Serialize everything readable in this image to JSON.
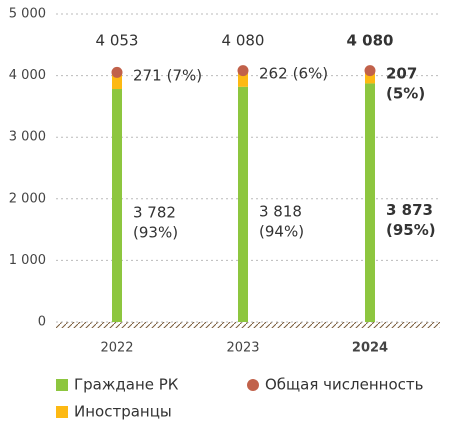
{
  "chart_data": {
    "type": "stacked-bar",
    "categories": [
      "2022",
      "2023",
      "2024"
    ],
    "highlight": "2024",
    "series": [
      {
        "name": "Граждане РК",
        "color": "#8dc63f",
        "values": [
          3782,
          3818,
          3873
        ],
        "value_labels": [
          "3 782",
          "3 818",
          "3 873"
        ],
        "share_labels": [
          "(93%)",
          "(94%)",
          "(95%)"
        ]
      },
      {
        "name": "Иностранцы",
        "color": "#fdb913",
        "values": [
          271,
          262,
          207
        ],
        "value_labels": [
          "271",
          "262",
          "207"
        ],
        "share_labels": [
          "(7%)",
          "(6%)",
          "(5%)"
        ]
      }
    ],
    "total": {
      "name": "Общая численность",
      "color": "#c1614a",
      "values": [
        4053,
        4080,
        4080
      ],
      "value_labels": [
        "4 053",
        "4 080",
        "4 080"
      ]
    },
    "ylim": [
      0,
      5000
    ],
    "yticks": [
      0,
      {
        "value": 1000,
        "label": "1 000"
      },
      {
        "value": 2000,
        "label": "2 000"
      },
      {
        "value": 3000,
        "label": "3 000"
      },
      {
        "value": 4000,
        "label": "4 000"
      },
      {
        "value": 5000,
        "label": "5 000"
      }
    ],
    "grid": true
  }
}
